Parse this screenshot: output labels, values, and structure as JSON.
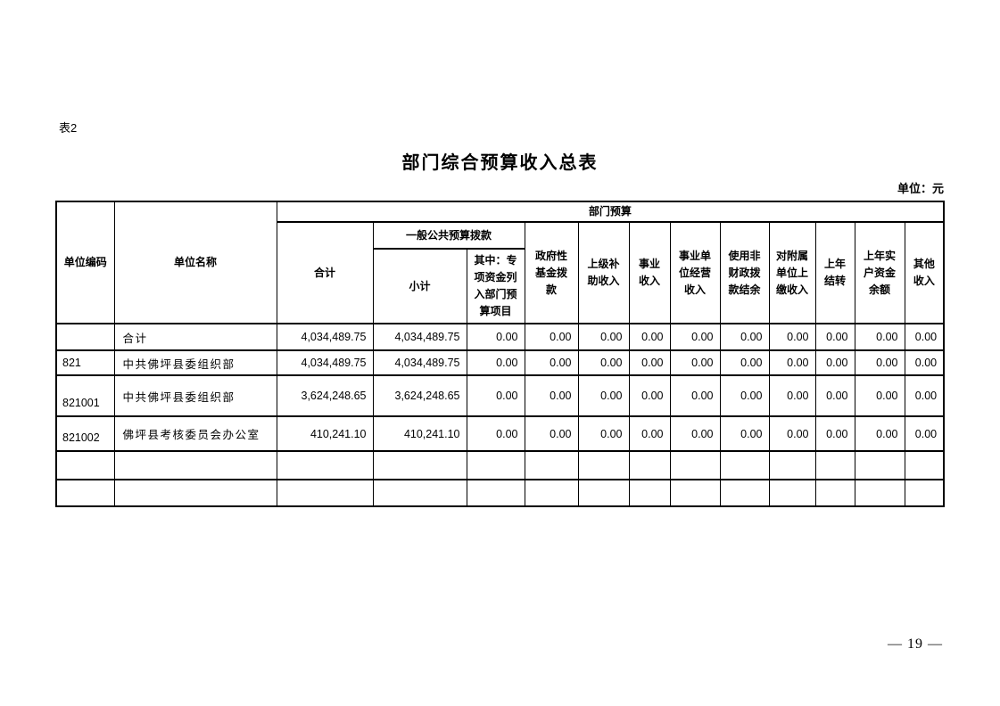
{
  "page": {
    "table_label": "表2",
    "title": "部门综合预算收入总表",
    "unit_note": "单位：元",
    "page_number": "— 19 —"
  },
  "table": {
    "header": {
      "unit_code": "单位编码",
      "unit_name": "单位名称",
      "dept_budget": "部门预算",
      "total": "合计",
      "general_public_budget": "一般公共预算拨款",
      "subtotal": "小计",
      "special_note": "其中：专项资金列入部门预算项目",
      "income_cols": [
        "政府性基金拨款",
        "上级补助收入",
        "事业收入",
        "事业单位经营收入",
        "使用非财政拨款结余",
        "对附属单位上缴收入",
        "上年结转",
        "上年实户资金余额",
        "其他收入"
      ]
    },
    "rows": [
      {
        "code": "",
        "name": "合计",
        "values": [
          "4,034,489.75",
          "4,034,489.75",
          "0.00",
          "0.00",
          "0.00",
          "0.00",
          "0.00",
          "0.00",
          "0.00",
          "0.00",
          "0.00",
          "0.00"
        ]
      },
      {
        "code": "821",
        "name": "中共佛坪县委组织部",
        "values": [
          "4,034,489.75",
          "4,034,489.75",
          "0.00",
          "0.00",
          "0.00",
          "0.00",
          "0.00",
          "0.00",
          "0.00",
          "0.00",
          "0.00",
          "0.00"
        ]
      },
      {
        "code": "821001",
        "name": "中共佛坪县委组织部",
        "values": [
          "3,624,248.65",
          "3,624,248.65",
          "0.00",
          "0.00",
          "0.00",
          "0.00",
          "0.00",
          "0.00",
          "0.00",
          "0.00",
          "0.00",
          "0.00"
        ]
      },
      {
        "code": "821002",
        "name": "佛坪县考核委员会办公室",
        "values": [
          "410,241.10",
          "410,241.10",
          "0.00",
          "0.00",
          "0.00",
          "0.00",
          "0.00",
          "0.00",
          "0.00",
          "0.00",
          "0.00",
          "0.00"
        ]
      },
      {
        "code": "",
        "name": "",
        "values": [
          "",
          "",
          "",
          "",
          "",
          "",
          "",
          "",
          "",
          "",
          "",
          ""
        ]
      },
      {
        "code": "",
        "name": "",
        "values": [
          "",
          "",
          "",
          "",
          "",
          "",
          "",
          "",
          "",
          "",
          "",
          ""
        ]
      }
    ]
  }
}
